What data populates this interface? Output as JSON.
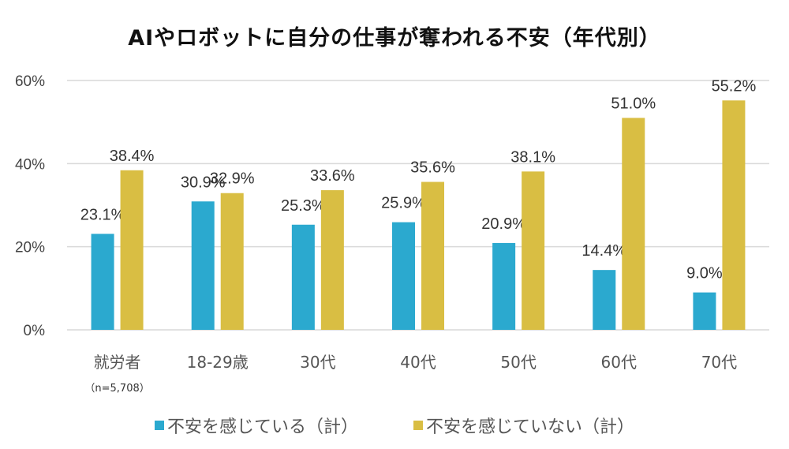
{
  "chart_data": {
    "type": "bar",
    "title": "AIやロボットに自分の仕事が奪われる不安（年代別）",
    "xlabel": "",
    "ylabel": "",
    "ylim": [
      0,
      60
    ],
    "yticks": [
      0,
      20,
      40,
      60
    ],
    "ytick_labels": [
      "0%",
      "20%",
      "40%",
      "60%"
    ],
    "grid": true,
    "legend_position": "bottom",
    "categories": [
      "就労者",
      "18-29歳",
      "30代",
      "40代",
      "50代",
      "60代",
      "70代"
    ],
    "category_note": "（n=5,708）",
    "series": [
      {
        "name": "不安を感じている（計）",
        "color": "#2ba9cf",
        "values": [
          23.1,
          30.9,
          25.3,
          25.9,
          20.9,
          14.4,
          9.0
        ],
        "labels": [
          "23.1%",
          "30.9%",
          "25.3%",
          "25.9%",
          "20.9%",
          "14.4%",
          "9.0%"
        ]
      },
      {
        "name": "不安を感じていない（計）",
        "color": "#d9be43",
        "values": [
          38.4,
          32.9,
          33.6,
          35.6,
          38.1,
          51.0,
          55.2
        ],
        "labels": [
          "38.4%",
          "32.9%",
          "33.6%",
          "35.6%",
          "38.1%",
          "51.0%",
          "55.2%"
        ]
      }
    ]
  }
}
